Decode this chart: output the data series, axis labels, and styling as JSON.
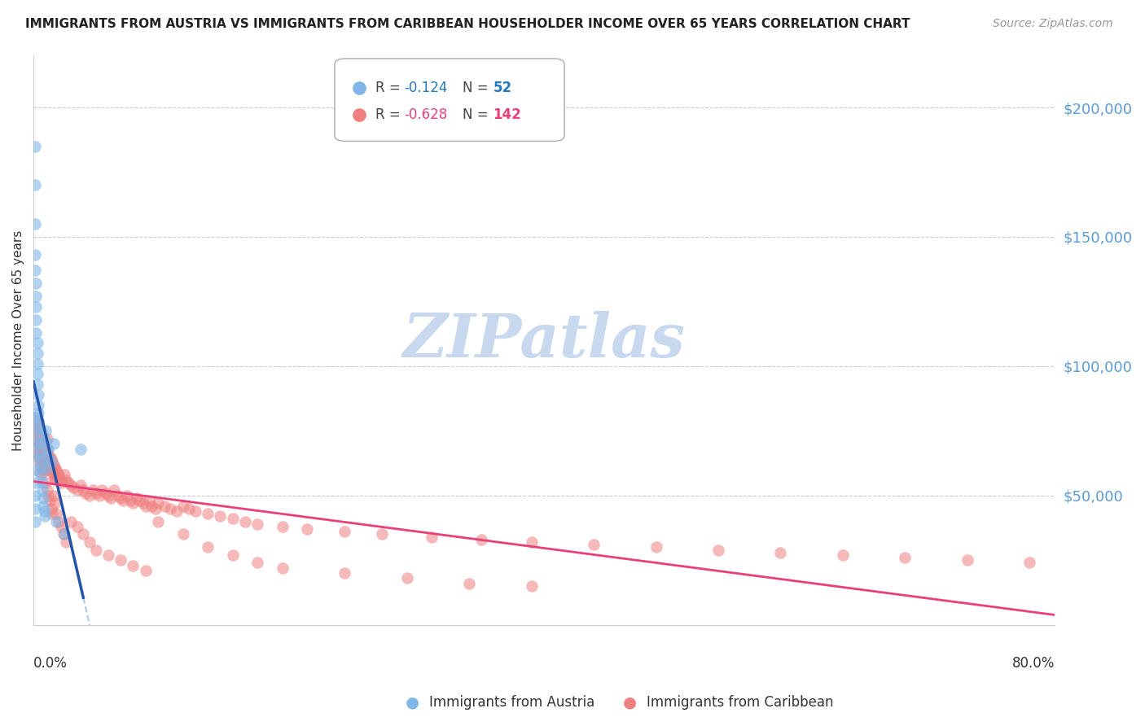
{
  "title": "IMMIGRANTS FROM AUSTRIA VS IMMIGRANTS FROM CARIBBEAN HOUSEHOLDER INCOME OVER 65 YEARS CORRELATION CHART",
  "source": "Source: ZipAtlas.com",
  "ylabel": "Householder Income Over 65 years",
  "ytick_values": [
    50000,
    100000,
    150000,
    200000
  ],
  "ylim": [
    0,
    220000
  ],
  "xlim": [
    0.0,
    0.82
  ],
  "austria_color": "#7eb6e8",
  "caribbean_color": "#f08080",
  "austria_line_color": "#2255aa",
  "caribbean_line_color": "#e84077",
  "austria_dashed_color": "#aaccee",
  "watermark_color": "#c8d8ef",
  "austria_x": [
    0.001,
    0.001,
    0.001,
    0.001,
    0.001,
    0.002,
    0.002,
    0.002,
    0.002,
    0.002,
    0.003,
    0.003,
    0.003,
    0.003,
    0.003,
    0.004,
    0.004,
    0.004,
    0.004,
    0.005,
    0.005,
    0.005,
    0.005,
    0.006,
    0.006,
    0.006,
    0.007,
    0.007,
    0.008,
    0.008,
    0.009,
    0.009,
    0.01,
    0.01,
    0.011,
    0.011,
    0.012,
    0.014,
    0.016,
    0.018,
    0.025,
    0.038,
    0.001,
    0.001,
    0.001,
    0.001,
    0.001,
    0.001,
    0.001,
    0.001,
    0.001
  ],
  "austria_y": [
    185000,
    170000,
    155000,
    143000,
    137000,
    132000,
    127000,
    123000,
    118000,
    113000,
    109000,
    105000,
    101000,
    97000,
    93000,
    89000,
    85000,
    82000,
    79000,
    76000,
    73000,
    70000,
    67000,
    64000,
    61000,
    58000,
    55000,
    52000,
    49000,
    46000,
    44000,
    42000,
    75000,
    71000,
    65000,
    61000,
    68000,
    63000,
    70000,
    40000,
    35000,
    68000,
    80000,
    75000,
    70000,
    65000,
    60000,
    55000,
    50000,
    45000,
    40000
  ],
  "caribbean_x": [
    0.001,
    0.002,
    0.002,
    0.003,
    0.003,
    0.004,
    0.004,
    0.005,
    0.005,
    0.005,
    0.006,
    0.006,
    0.007,
    0.007,
    0.007,
    0.008,
    0.008,
    0.008,
    0.009,
    0.009,
    0.01,
    0.01,
    0.011,
    0.011,
    0.011,
    0.012,
    0.012,
    0.013,
    0.013,
    0.014,
    0.014,
    0.015,
    0.015,
    0.016,
    0.016,
    0.017,
    0.017,
    0.018,
    0.018,
    0.019,
    0.02,
    0.021,
    0.022,
    0.023,
    0.025,
    0.026,
    0.028,
    0.03,
    0.032,
    0.035,
    0.038,
    0.04,
    0.042,
    0.045,
    0.048,
    0.05,
    0.053,
    0.055,
    0.058,
    0.06,
    0.062,
    0.065,
    0.068,
    0.07,
    0.072,
    0.075,
    0.078,
    0.08,
    0.083,
    0.085,
    0.088,
    0.09,
    0.093,
    0.095,
    0.098,
    0.1,
    0.105,
    0.11,
    0.115,
    0.12,
    0.125,
    0.13,
    0.14,
    0.15,
    0.16,
    0.17,
    0.18,
    0.2,
    0.22,
    0.25,
    0.28,
    0.32,
    0.36,
    0.4,
    0.45,
    0.5,
    0.55,
    0.6,
    0.65,
    0.7,
    0.75,
    0.8,
    0.002,
    0.003,
    0.004,
    0.005,
    0.006,
    0.007,
    0.008,
    0.009,
    0.01,
    0.011,
    0.012,
    0.013,
    0.014,
    0.015,
    0.016,
    0.017,
    0.018,
    0.02,
    0.022,
    0.024,
    0.026,
    0.03,
    0.035,
    0.04,
    0.045,
    0.05,
    0.06,
    0.07,
    0.08,
    0.09,
    0.1,
    0.12,
    0.14,
    0.16,
    0.18,
    0.2,
    0.25,
    0.3,
    0.35,
    0.4
  ],
  "caribbean_y": [
    72000,
    75000,
    68000,
    71000,
    66000,
    70000,
    65000,
    67000,
    63000,
    59000,
    66000,
    62000,
    68000,
    64000,
    60000,
    67000,
    63000,
    59000,
    65000,
    61000,
    64000,
    60000,
    72000,
    68000,
    64000,
    66000,
    62000,
    65000,
    61000,
    64000,
    60000,
    63000,
    59000,
    62000,
    58000,
    61000,
    57000,
    60000,
    56000,
    59000,
    58000,
    57000,
    56000,
    55000,
    58000,
    56000,
    55000,
    54000,
    53000,
    52000,
    54000,
    52000,
    51000,
    50000,
    52000,
    51000,
    50000,
    52000,
    51000,
    50000,
    49000,
    52000,
    50000,
    49000,
    48000,
    50000,
    48000,
    47000,
    49000,
    48000,
    47000,
    46000,
    48000,
    46000,
    45000,
    47000,
    46000,
    45000,
    44000,
    46000,
    45000,
    44000,
    43000,
    42000,
    41000,
    40000,
    39000,
    38000,
    37000,
    36000,
    35000,
    34000,
    33000,
    32000,
    31000,
    30000,
    29000,
    28000,
    27000,
    26000,
    25000,
    24000,
    80000,
    78000,
    76000,
    74000,
    72000,
    70000,
    65000,
    60000,
    55000,
    52000,
    50000,
    48000,
    45000,
    43000,
    50000,
    47000,
    43000,
    40000,
    38000,
    35000,
    32000,
    40000,
    38000,
    35000,
    32000,
    29000,
    27000,
    25000,
    23000,
    21000,
    40000,
    35000,
    30000,
    27000,
    24000,
    22000,
    20000,
    18000,
    16000,
    15000
  ]
}
